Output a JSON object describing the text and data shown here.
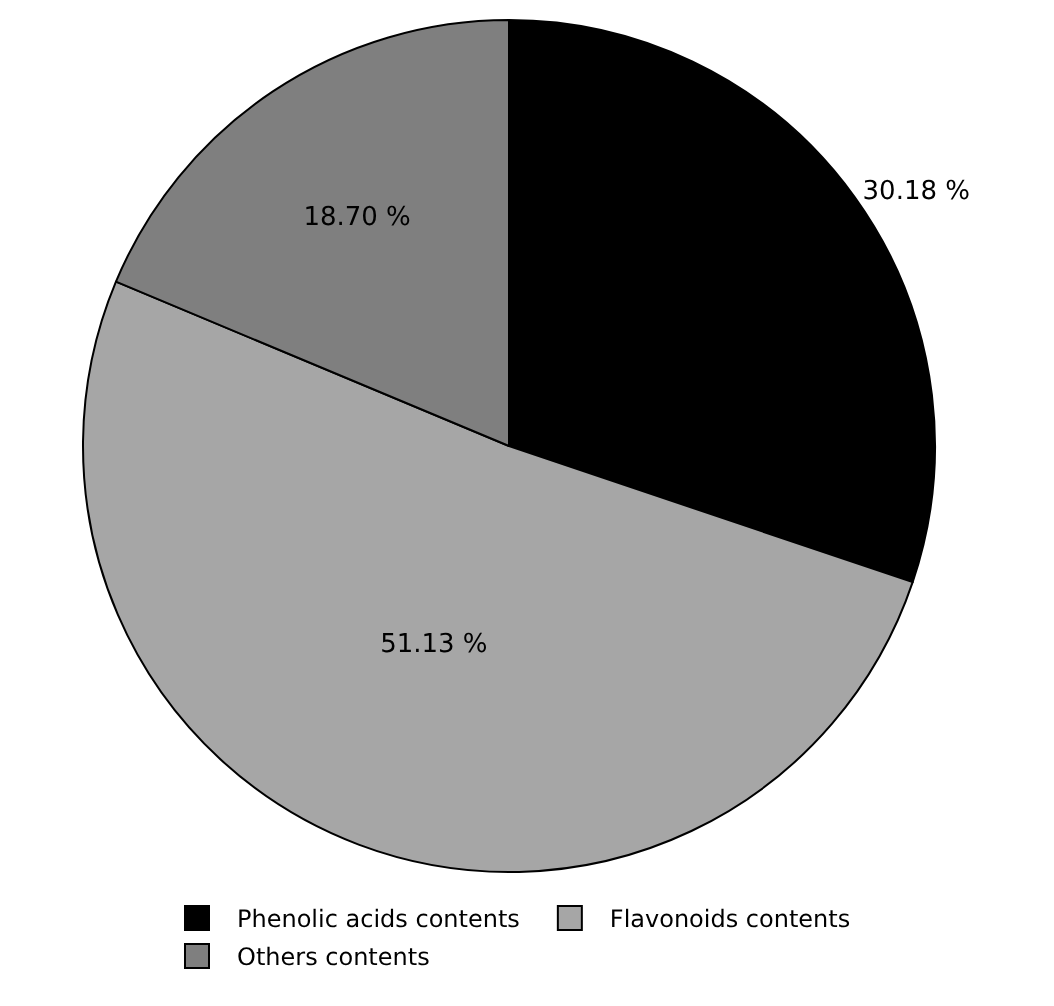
{
  "chart_data": {
    "type": "pie",
    "categories": [
      "Phenolic acids contents",
      "Flavonoids contents",
      "Others contents"
    ],
    "values": [
      30.18,
      51.13,
      18.7
    ],
    "colors": [
      "#000000",
      "#a6a6a6",
      "#7f7f7f"
    ],
    "value_labels": [
      "30.18 %",
      "51.13 %",
      "18.70 %"
    ],
    "legend": "bottom"
  }
}
